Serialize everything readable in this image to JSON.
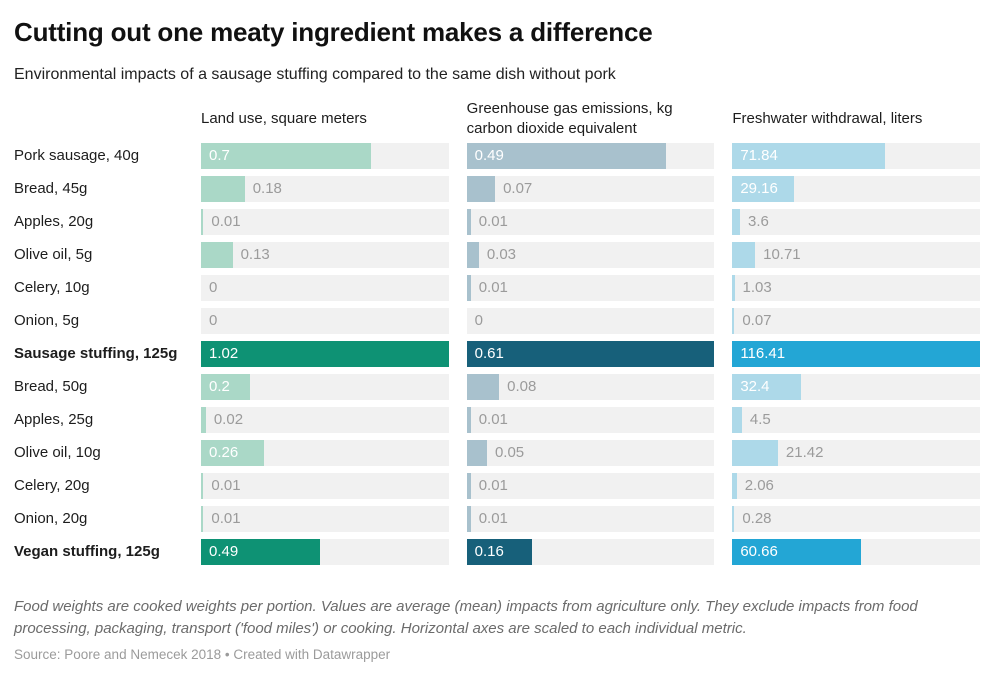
{
  "title": "Cutting out one meaty ingredient makes a difference",
  "subtitle": "Environmental impacts of a sausage stuffing compared to the same dish without pork",
  "notes": "Food weights are cooked weights per portion. Values are average (mean) impacts from agriculture only. They exclude impacts from food processing, packaging, transport ('food miles') or cooking. Horizontal axes are scaled to each individual metric.",
  "source": "Source: Poore and Nemecek 2018 • Created with Datawrapper",
  "colors": {
    "track_background": "#f1f1f1",
    "value_label_inside": "#ffffff",
    "value_label_outside": "#9b9b9b",
    "title_text": "#111111",
    "body_text": "#1d1d1d",
    "notes_text": "#6b6b6b",
    "source_text": "#9b9b9b"
  },
  "chart_data": {
    "type": "bar",
    "orientation": "horizontal",
    "grid": false,
    "legend": "none",
    "title": "Cutting out one meaty ingredient makes a difference",
    "subtitle": "Environmental impacts of a sausage stuffing compared to the same dish without pork",
    "axis_note": "Horizontal axes are scaled to each individual metric",
    "columns": [
      {
        "label": "Land use, square meters",
        "axis_max": 1.02,
        "bar_color": "#aad8c7",
        "bar_color_emphasis": "#0e9274"
      },
      {
        "label": "Greenhouse gas emissions, kg carbon dioxide equivalent",
        "axis_max": 0.61,
        "bar_color": "#a8c1cd",
        "bar_color_emphasis": "#17607a"
      },
      {
        "label": "Freshwater withdrawal, liters",
        "axis_max": 116.41,
        "bar_color": "#add9e9",
        "bar_color_emphasis": "#23a6d5"
      }
    ],
    "rows": [
      {
        "label": "Pork sausage, 40g",
        "bold": false,
        "values": [
          "0.7",
          "0.49",
          "71.84"
        ]
      },
      {
        "label": "Bread, 45g",
        "bold": false,
        "values": [
          "0.18",
          "0.07",
          "29.16"
        ]
      },
      {
        "label": "Apples, 20g",
        "bold": false,
        "values": [
          "0.01",
          "0.01",
          "3.6"
        ]
      },
      {
        "label": "Olive oil, 5g",
        "bold": false,
        "values": [
          "0.13",
          "0.03",
          "10.71"
        ]
      },
      {
        "label": "Celery, 10g",
        "bold": false,
        "values": [
          "0",
          "0.01",
          "1.03"
        ]
      },
      {
        "label": "Onion, 5g",
        "bold": false,
        "values": [
          "0",
          "0",
          "0.07"
        ]
      },
      {
        "label": "Sausage stuffing, 125g",
        "bold": true,
        "values": [
          "1.02",
          "0.61",
          "116.41"
        ]
      },
      {
        "label": "Bread, 50g",
        "bold": false,
        "values": [
          "0.2",
          "0.08",
          "32.4"
        ]
      },
      {
        "label": "Apples, 25g",
        "bold": false,
        "values": [
          "0.02",
          "0.01",
          "4.5"
        ]
      },
      {
        "label": "Olive oil, 10g",
        "bold": false,
        "values": [
          "0.26",
          "0.05",
          "21.42"
        ]
      },
      {
        "label": "Celery, 20g",
        "bold": false,
        "values": [
          "0.01",
          "0.01",
          "2.06"
        ]
      },
      {
        "label": "Onion, 20g",
        "bold": false,
        "values": [
          "0.01",
          "0.01",
          "0.28"
        ]
      },
      {
        "label": "Vegan stuffing, 125g",
        "bold": true,
        "values": [
          "0.49",
          "0.16",
          "60.66"
        ]
      }
    ]
  }
}
